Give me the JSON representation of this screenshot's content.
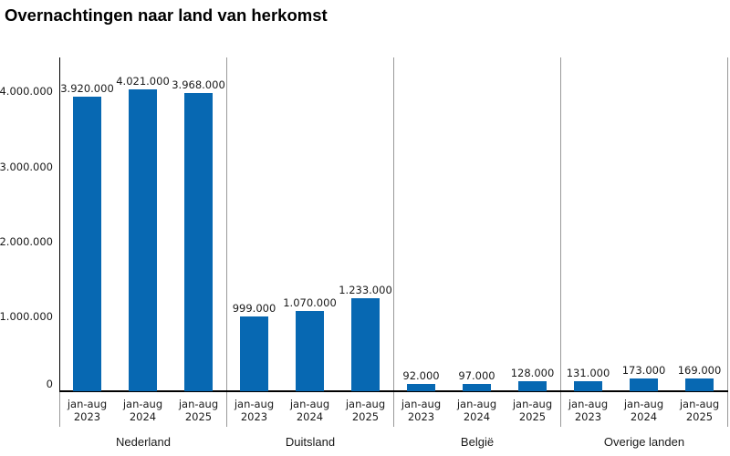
{
  "title": "Overnachtingen naar land van herkomst",
  "colors": {
    "bar": "#0768b2",
    "axis": "#000000",
    "separator": "#999999",
    "text": "#1a1a1a"
  },
  "chart_data": {
    "type": "bar",
    "title": "Overnachtingen naar land van herkomst",
    "ylabel": "",
    "xlabel": "",
    "ylim": [
      0,
      4440000
    ],
    "grid": false,
    "legend": false,
    "yticks": [
      {
        "value": 0,
        "label": "0"
      },
      {
        "value": 1000000,
        "label": "1.000.000"
      },
      {
        "value": 2000000,
        "label": "2.000.000"
      },
      {
        "value": 3000000,
        "label": "3.000.000"
      },
      {
        "value": 4000000,
        "label": "4.000.000"
      }
    ],
    "period_label": "jan-aug",
    "years": [
      "2023",
      "2024",
      "2025"
    ],
    "groups": [
      {
        "label": "Nederland",
        "values": [
          3920000,
          4021000,
          3968000
        ],
        "data_labels": [
          "3.920.000",
          "4.021.000",
          "3.968.000"
        ]
      },
      {
        "label": "Duitsland",
        "values": [
          999000,
          1070000,
          1233000
        ],
        "data_labels": [
          "999.000",
          "1.070.000",
          "1.233.000"
        ]
      },
      {
        "label": "België",
        "values": [
          92000,
          97000,
          128000
        ],
        "data_labels": [
          "92.000",
          "97.000",
          "128.000"
        ]
      },
      {
        "label": "Overige landen",
        "values": [
          131000,
          173000,
          169000
        ],
        "data_labels": [
          "131.000",
          "173.000",
          "169.000"
        ]
      }
    ]
  }
}
